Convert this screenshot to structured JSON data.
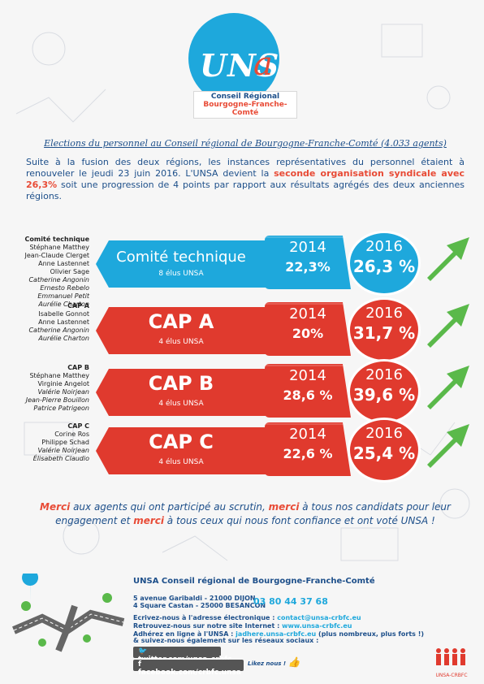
{
  "logo": {
    "word": "UNS",
    "letter_a": "a",
    "sub_line1": "Conseil Régional",
    "sub_line2": "Bourgogne-Franche-Comté"
  },
  "intro": {
    "title": "Elections du personnel au Conseil régional de Bourgogne-Franche-Comté (4.033 agents)",
    "text_before": "Suite à la fusion des deux régions, les instances représentatives du personnel étaient à renouveler le jeudi 23 juin 2016. L'UNSA devient la ",
    "highlight1": "seconde organisation syndicale avec 26,3%",
    "text_after": " soit une progression de 4 points par rapport aux résultats agrégés des deux anciennes régions."
  },
  "rows": [
    {
      "names_header": "Comité technique",
      "names": [
        "Stéphane Matthey",
        "Jean-Claude Clerget",
        "Anne Lastennet",
        "Olivier Sage"
      ],
      "names_italic": [
        "Catherine Angonin",
        "Ernesto Rebelo",
        "Emmanuel Petit",
        "Aurélie Charton"
      ],
      "title": "Comité technique",
      "elus": "8 élus UNSA",
      "year_old": "2014",
      "pct_old": "22,3%",
      "year_new": "2016",
      "pct_new": "26,3 %",
      "color": "#1ea8dc"
    },
    {
      "names_header": "CAP A",
      "names": [
        "Isabelle Gonnot",
        "Anne Lastennet"
      ],
      "names_italic": [
        "Catherine Angonin",
        "Aurélie Charton"
      ],
      "title": "CAP A",
      "elus": "4 élus UNSA",
      "year_old": "2014",
      "pct_old": "20%",
      "year_new": "2016",
      "pct_new": "31,7 %",
      "color": "#e03a2e"
    },
    {
      "names_header": "CAP B",
      "names": [
        "Stéphane Matthey",
        "Virginie Angelot"
      ],
      "names_italic": [
        "Valérie Noirjean",
        "Jean-Pierre Bouillon",
        "Patrice Patrigeon"
      ],
      "title": "CAP B",
      "elus": "4 élus UNSA",
      "year_old": "2014",
      "pct_old": "28,6 %",
      "year_new": "2016",
      "pct_new": "39,6 %",
      "color": "#e03a2e"
    },
    {
      "names_header": "CAP C",
      "names": [
        "Corine Ros",
        "Philippe Schad"
      ],
      "names_italic": [
        "Valérie Noirjean",
        "Élisabeth Claudio"
      ],
      "title": "CAP C",
      "elus": "4 élus UNSA",
      "year_old": "2014",
      "pct_old": "22,6 %",
      "year_new": "2016",
      "pct_new": "25,4 %",
      "color": "#e03a2e"
    }
  ],
  "thanks": {
    "m1": "Merci",
    "t1": " aux agents qui ont participé au scrutin, ",
    "m2": "merci",
    "t2": " à tous nos candidats pour leur engagement et ",
    "m3": "merci",
    "t3": " à tous ceux qui nous font confiance et ont voté UNSA !"
  },
  "footer": {
    "title": "UNSA Conseil régional de Bourgogne-Franche-Comté",
    "addr1": "5 avenue Garibaldi - 21000 DIJON",
    "addr2": "4 Square Castan - 25000 BESANCON",
    "phone": "03 80 44 37 68",
    "email_label": "Ecrivez-nous à l'adresse électronique : ",
    "email": "contact@unsa-crbfc.eu",
    "site_label": "Retrouvez-nous sur notre site Internet : ",
    "site": "www.unsa-crbfc.eu",
    "join_label": "Adhérez en ligne à l'UNSA : ",
    "join": "jadhere.unsa-crbfc.eu",
    "join_note": " (plus nombreux, plus forts !)",
    "social": "& suivez-nous également sur les réseaux sociaux :",
    "twitter": "twitter.com/unsa_crbfc",
    "facebook": "facebook.com/crbfc.unsa",
    "like": "Likez nous !",
    "brand": "UNSA-CRBFC"
  }
}
